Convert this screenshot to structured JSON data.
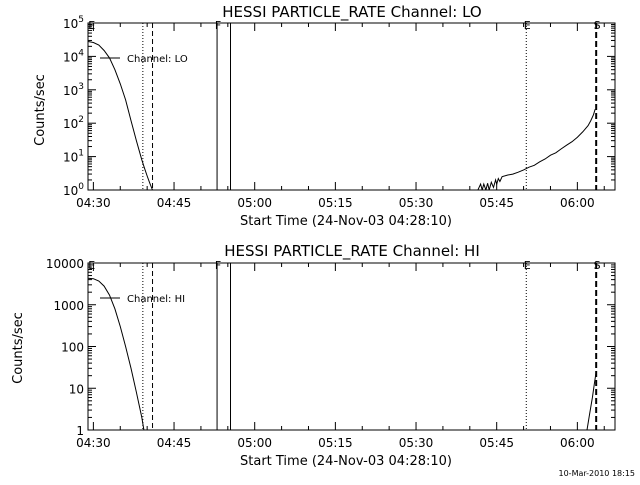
{
  "footer": {
    "timestamp": "10-Mar-2010 18:15"
  },
  "chart_data": [
    {
      "type": "line",
      "title": "HESSI PARTICLE_RATE Channel: LO",
      "xlabel": "Start Time (24-Nov-03 04:28:10)",
      "ylabel": "Counts/sec",
      "y_scale": "log",
      "x_range_min": [
        1.0,
        99.0
      ],
      "y_range": [
        1,
        100000
      ],
      "x_ticks": [
        {
          "label": "04:30",
          "value": 2
        },
        {
          "label": "04:45",
          "value": 17
        },
        {
          "label": "05:00",
          "value": 32
        },
        {
          "label": "05:15",
          "value": 47
        },
        {
          "label": "05:30",
          "value": 62
        },
        {
          "label": "05:45",
          "value": 77
        },
        {
          "label": "06:00",
          "value": 92
        }
      ],
      "y_ticks": [
        {
          "label": "10",
          "sup": "0",
          "value": 1
        },
        {
          "label": "10",
          "sup": "1",
          "value": 10
        },
        {
          "label": "10",
          "sup": "2",
          "value": 100
        },
        {
          "label": "10",
          "sup": "3",
          "value": 1000
        },
        {
          "label": "10",
          "sup": "4",
          "value": 10000
        },
        {
          "label": "10",
          "sup": "5",
          "value": 100000
        }
      ],
      "legend": {
        "label": "Channel: LO"
      },
      "markers": [
        {
          "letter": "E",
          "x": 1.5,
          "style": "none"
        },
        {
          "letter": "",
          "x": 11.2,
          "style": "dotted"
        },
        {
          "letter": "",
          "x": 13.0,
          "style": "dashed"
        },
        {
          "letter": "F",
          "x": 25.0,
          "style": "solid"
        },
        {
          "letter": "",
          "x": 27.5,
          "style": "solid"
        },
        {
          "letter": "E",
          "x": 82.5,
          "style": "dotted"
        },
        {
          "letter": "S",
          "x": 95.5,
          "style": "dashed-thick"
        }
      ],
      "series": [
        {
          "x": [
            1.0,
            2,
            3,
            4,
            5,
            6,
            7,
            8,
            9,
            10,
            11,
            11.5,
            12,
            12.5,
            13
          ],
          "y": [
            28000,
            26000,
            22000,
            15000,
            9000,
            4000,
            1500,
            500,
            120,
            30,
            8,
            4.5,
            2.6,
            1.6,
            1.0
          ]
        },
        {
          "x": [
            73.5,
            74,
            74.3,
            74.6,
            75,
            75.3,
            75.6,
            76,
            76.4,
            76.8,
            77,
            77.3,
            77.6,
            78,
            79,
            80,
            81,
            82,
            83,
            84,
            85,
            86,
            87,
            88,
            89,
            90,
            91,
            92,
            93,
            94,
            94.5,
            95,
            95.3
          ],
          "y": [
            1,
            1.5,
            1,
            1.5,
            1,
            1.6,
            1,
            1.7,
            1.2,
            2,
            1.5,
            2.2,
            1.8,
            2.5,
            2.8,
            3.0,
            3.4,
            4.0,
            4.8,
            5.5,
            7,
            8.5,
            11,
            13,
            17,
            22,
            28,
            38,
            55,
            85,
            120,
            180,
            260
          ]
        }
      ]
    },
    {
      "type": "line",
      "title": "HESSI PARTICLE_RATE Channel: HI",
      "xlabel": "Start Time (24-Nov-03 04:28:10)",
      "ylabel": "Counts/sec",
      "y_scale": "log",
      "x_range_min": [
        1.0,
        99.0
      ],
      "y_range": [
        1,
        10000
      ],
      "x_ticks": [
        {
          "label": "04:30",
          "value": 2
        },
        {
          "label": "04:45",
          "value": 17
        },
        {
          "label": "05:00",
          "value": 32
        },
        {
          "label": "05:15",
          "value": 47
        },
        {
          "label": "05:30",
          "value": 62
        },
        {
          "label": "05:45",
          "value": 77
        },
        {
          "label": "06:00",
          "value": 92
        }
      ],
      "y_ticks": [
        {
          "label": "1",
          "sup": "",
          "value": 1
        },
        {
          "label": "10",
          "sup": "",
          "value": 10
        },
        {
          "label": "100",
          "sup": "",
          "value": 100
        },
        {
          "label": "1000",
          "sup": "",
          "value": 1000
        },
        {
          "label": "10000",
          "sup": "",
          "value": 10000
        }
      ],
      "legend": {
        "label": "Channel: HI"
      },
      "markers": [
        {
          "letter": "E",
          "x": 1.5,
          "style": "none"
        },
        {
          "letter": "",
          "x": 11.2,
          "style": "dotted"
        },
        {
          "letter": "",
          "x": 13.0,
          "style": "dashed"
        },
        {
          "letter": "F",
          "x": 25.0,
          "style": "solid"
        },
        {
          "letter": "",
          "x": 27.5,
          "style": "solid"
        },
        {
          "letter": "E",
          "x": 82.5,
          "style": "dotted"
        },
        {
          "letter": "S",
          "x": 95.5,
          "style": "dashed-thick"
        }
      ],
      "series": [
        {
          "x": [
            1.0,
            2,
            3,
            4,
            5,
            6,
            7,
            8,
            9,
            10,
            10.5,
            11,
            11.4
          ],
          "y": [
            4300,
            4200,
            3700,
            2800,
            1700,
            800,
            300,
            100,
            30,
            8,
            4,
            2,
            1
          ]
        },
        {
          "x": [
            93.8,
            94.3,
            94.8,
            95.2,
            95.5
          ],
          "y": [
            1,
            2.5,
            6,
            14,
            25
          ]
        }
      ]
    }
  ]
}
